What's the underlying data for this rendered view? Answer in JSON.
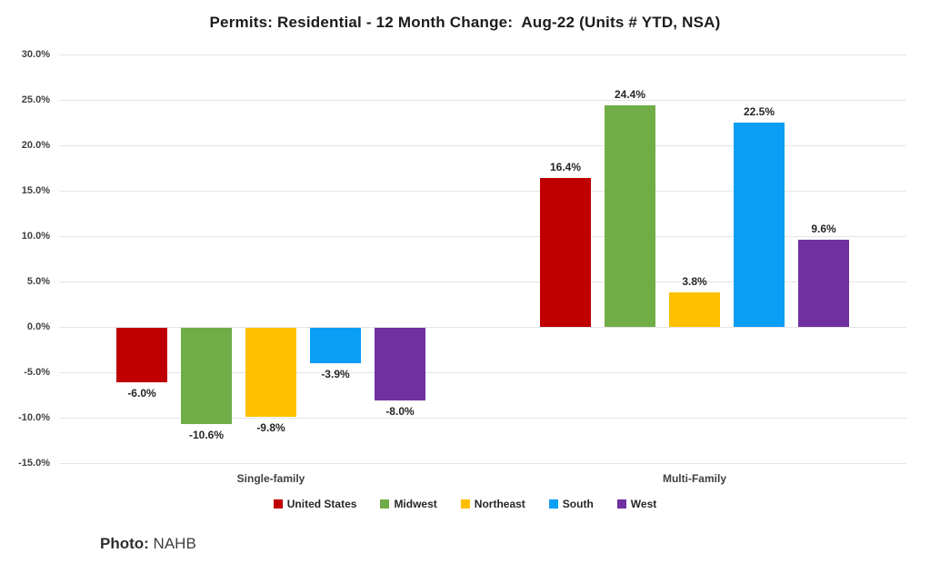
{
  "title": "Permits: Residential - 12 Month Change:  Aug-22 (Units # YTD, NSA)",
  "photo_credit": {
    "label": "Photo:",
    "value": " NAHB"
  },
  "chart_data": {
    "type": "bar",
    "title": "Permits: Residential - 12 Month Change:  Aug-22 (Units # YTD, NSA)",
    "categories": [
      "Single-family",
      "Multi-Family"
    ],
    "series": [
      {
        "name": "United States",
        "color": "#c00000",
        "values": [
          -6.0,
          16.4
        ],
        "labels": [
          "-6.0%",
          "16.4%"
        ]
      },
      {
        "name": "Midwest",
        "color": "#70ad47",
        "values": [
          -10.6,
          24.4
        ],
        "labels": [
          "-10.6%",
          "24.4%"
        ]
      },
      {
        "name": "Northeast",
        "color": "#ffc000",
        "values": [
          -9.8,
          3.8
        ],
        "labels": [
          "-9.8%",
          "3.8%"
        ]
      },
      {
        "name": "South",
        "color": "#0a9ef5",
        "values": [
          -3.9,
          22.5
        ],
        "labels": [
          "-3.9%",
          "22.5%"
        ]
      },
      {
        "name": "West",
        "color": "#7030a0",
        "values": [
          -8.0,
          9.6
        ],
        "labels": [
          "-8.0%",
          "9.6%"
        ]
      }
    ],
    "xlabel": "",
    "ylabel": "",
    "ylim": [
      -15,
      30
    ],
    "y_axis": {
      "min": -15,
      "max": 30,
      "step": 5,
      "ticks": [
        "30.0%",
        "25.0%",
        "20.0%",
        "15.0%",
        "10.0%",
        "5.0%",
        "0.0%",
        "-5.0%",
        "-10.0%",
        "-15.0%"
      ]
    },
    "grid": true,
    "legend_position": "bottom"
  }
}
